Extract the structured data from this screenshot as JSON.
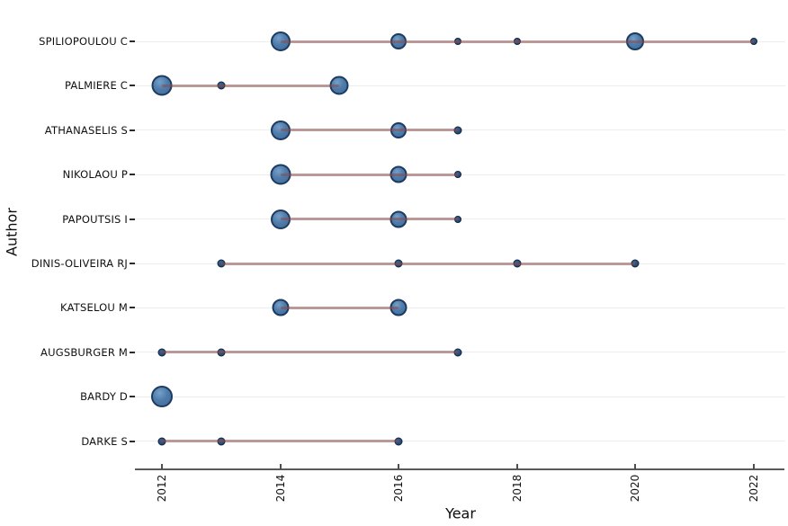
{
  "figure": {
    "xlabel": "Year",
    "ylabel": "Author"
  },
  "chart_data": {
    "type": "scatter",
    "subtype": "bubble-timeline-lollipop",
    "title": "",
    "xlabel": "Year",
    "ylabel": "Author",
    "xlim": [
      2011.5,
      2022.5
    ],
    "x_ticks": [
      "2012",
      "2014",
      "2016",
      "2018",
      "2020",
      "2022"
    ],
    "grid": "horizontal-per-row",
    "legend": "none",
    "colors": {
      "bubble_fill": "#4f7cab",
      "bubble_border": "#1d3a5f",
      "small_bubble_fill": "#2c4c78",
      "small_bubble_border": "#10263e",
      "connector_line": "#bf9b9b",
      "gridline": "#ededed",
      "axis": "#5a5a5a",
      "background": "#ffffff"
    },
    "categories": [
      "SPILIOPOULOU C",
      "PALMIERE C",
      "ATHANASELIS S",
      "NIKOLAOU P",
      "PAPOUTSIS I",
      "DINIS-OLIVEIRA RJ",
      "KATSELOU M",
      "AUGSBURGER M",
      "BARDY D",
      "DARKE S"
    ],
    "series": [
      {
        "name": "SPILIOPOULOU C",
        "points": [
          {
            "year": 2014,
            "d": 22
          },
          {
            "year": 2016,
            "d": 18
          },
          {
            "year": 2017,
            "d": 8
          },
          {
            "year": 2018,
            "d": 8
          },
          {
            "year": 2020,
            "d": 20
          },
          {
            "year": 2022,
            "d": 8
          }
        ],
        "line": [
          2014,
          2022
        ]
      },
      {
        "name": "PALMIERE C",
        "points": [
          {
            "year": 2012,
            "d": 23
          },
          {
            "year": 2013,
            "d": 9
          },
          {
            "year": 2015,
            "d": 21
          }
        ],
        "line": [
          2012,
          2015
        ]
      },
      {
        "name": "ATHANASELIS S",
        "points": [
          {
            "year": 2014,
            "d": 22
          },
          {
            "year": 2016,
            "d": 18
          },
          {
            "year": 2017,
            "d": 9
          }
        ],
        "line": [
          2014,
          2017
        ]
      },
      {
        "name": "NIKOLAOU P",
        "points": [
          {
            "year": 2014,
            "d": 23
          },
          {
            "year": 2016,
            "d": 19
          },
          {
            "year": 2017,
            "d": 8
          }
        ],
        "line": [
          2014,
          2017
        ]
      },
      {
        "name": "PAPOUTSIS I",
        "points": [
          {
            "year": 2014,
            "d": 22
          },
          {
            "year": 2016,
            "d": 19
          },
          {
            "year": 2017,
            "d": 8
          }
        ],
        "line": [
          2014,
          2017
        ]
      },
      {
        "name": "DINIS-OLIVEIRA RJ",
        "points": [
          {
            "year": 2013,
            "d": 9
          },
          {
            "year": 2016,
            "d": 9
          },
          {
            "year": 2018,
            "d": 9
          },
          {
            "year": 2020,
            "d": 9
          }
        ],
        "line": [
          2013,
          2020
        ]
      },
      {
        "name": "KATSELOU M",
        "points": [
          {
            "year": 2014,
            "d": 19
          },
          {
            "year": 2016,
            "d": 19
          }
        ],
        "line": [
          2014,
          2016
        ]
      },
      {
        "name": "AUGSBURGER M",
        "points": [
          {
            "year": 2012,
            "d": 9
          },
          {
            "year": 2013,
            "d": 9
          },
          {
            "year": 2017,
            "d": 9
          }
        ],
        "line": [
          2012,
          2017
        ]
      },
      {
        "name": "BARDY D",
        "points": [
          {
            "year": 2012,
            "d": 24
          }
        ],
        "line": null
      },
      {
        "name": "DARKE S",
        "points": [
          {
            "year": 2012,
            "d": 9
          },
          {
            "year": 2013,
            "d": 9
          },
          {
            "year": 2016,
            "d": 9
          }
        ],
        "line": [
          2012,
          2016
        ]
      }
    ]
  }
}
